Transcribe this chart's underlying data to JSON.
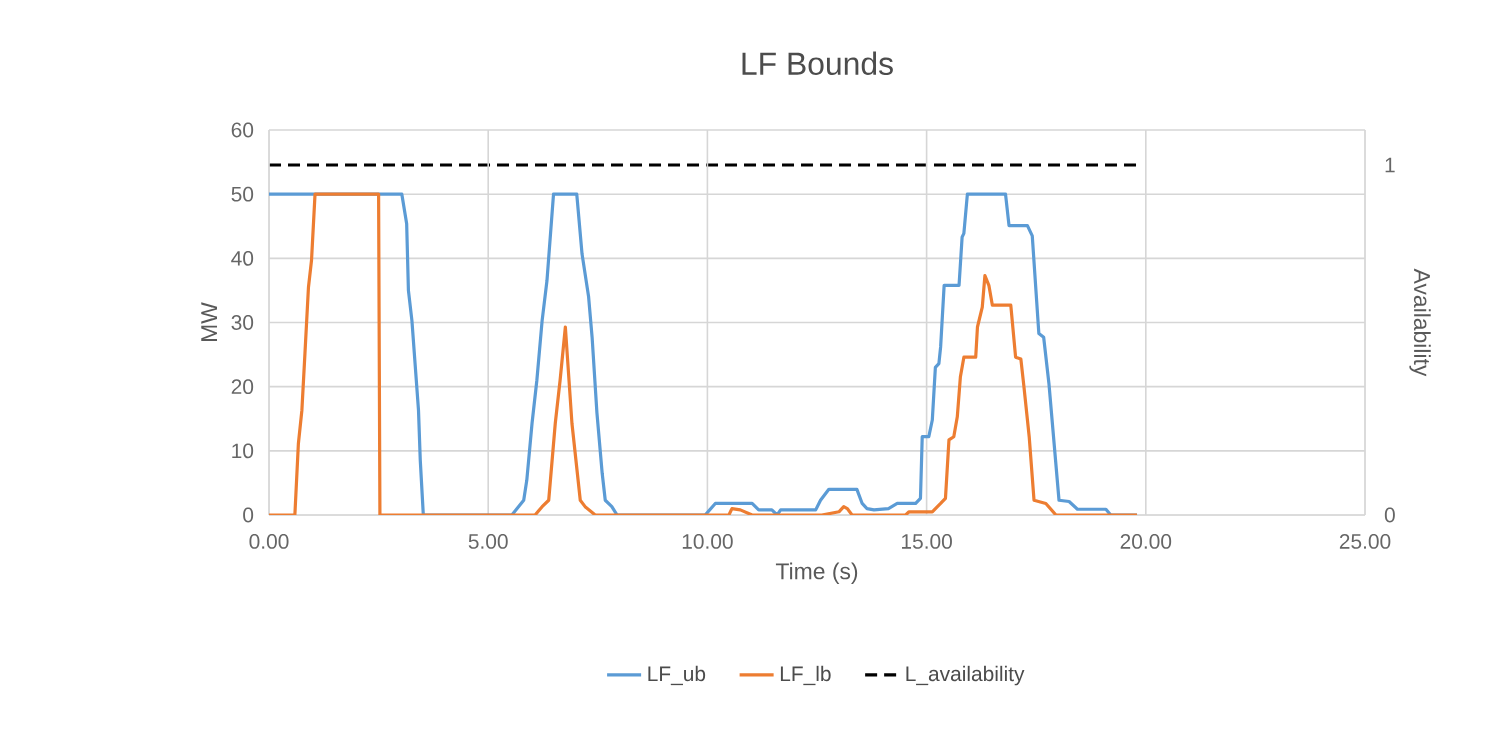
{
  "chart_data": {
    "type": "line",
    "title": "LF Bounds",
    "xlabel": "Time (s)",
    "ylabel": "MW",
    "y2label": "Availability",
    "xlim": [
      0,
      25
    ],
    "xticks": [
      {
        "value": 0,
        "label": "0.00"
      },
      {
        "value": 5,
        "label": "5.00"
      },
      {
        "value": 10,
        "label": "10.00"
      },
      {
        "value": 15,
        "label": "15.00"
      },
      {
        "value": 20,
        "label": "20.00"
      },
      {
        "value": 25,
        "label": "25.00"
      }
    ],
    "ylim": [
      0,
      60
    ],
    "yticks": [
      0,
      10,
      20,
      30,
      40,
      50,
      60
    ],
    "y2lim": [
      0,
      1.1
    ],
    "y2ticks": [
      0,
      1
    ],
    "grid": true,
    "legend": "bottom",
    "marker": "none",
    "series": [
      {
        "name": "LF_ub",
        "color": "#5b9bd5",
        "line_style": "solid",
        "x": [
          0,
          3.03,
          3.14,
          3.18,
          3.26,
          3.41,
          3.45,
          3.52,
          5.54,
          5.81,
          5.88,
          6.0,
          6.11,
          6.23,
          6.34,
          6.49,
          7.02,
          7.14,
          7.29,
          7.37,
          7.48,
          7.6,
          7.67,
          7.82,
          7.94,
          9.95,
          10.18,
          11.02,
          11.17,
          11.47,
          11.59,
          11.67,
          12.47,
          12.58,
          12.77,
          13.41,
          13.53,
          13.64,
          13.8,
          14.13,
          14.33,
          14.75,
          14.86,
          14.9,
          15.05,
          15.13,
          15.2,
          15.28,
          15.32,
          15.4,
          15.74,
          15.81,
          15.85,
          15.93,
          16.8,
          16.88,
          17.3,
          17.41,
          17.56,
          17.67,
          17.79,
          18.02,
          18.25,
          18.44,
          19.09,
          19.2,
          19.8
        ],
        "values": [
          50,
          50,
          45.4,
          35,
          30.3,
          16.3,
          8.6,
          0,
          0,
          2.3,
          5.4,
          14.3,
          21,
          30.3,
          36.5,
          50,
          50,
          40.7,
          34,
          27.7,
          15.9,
          6.5,
          2.3,
          1.3,
          0,
          0,
          1.8,
          1.8,
          0.8,
          0.8,
          0,
          0.8,
          0.8,
          2.3,
          4,
          4,
          1.8,
          1,
          0.8,
          1,
          1.8,
          1.8,
          2.6,
          12.2,
          12.2,
          14.8,
          23,
          23.6,
          26.2,
          35.8,
          35.8,
          43.3,
          43.9,
          50,
          50,
          45.1,
          45.1,
          43.5,
          28.3,
          27.7,
          20.5,
          2.3,
          2.1,
          0.9,
          0.9,
          0,
          0
        ]
      },
      {
        "name": "LF_lb",
        "color": "#ed7d31",
        "line_style": "solid",
        "x": [
          0,
          0.59,
          0.67,
          0.75,
          0.82,
          0.9,
          0.97,
          1.05,
          2.5,
          2.53,
          6.07,
          6.23,
          6.38,
          6.53,
          6.64,
          6.76,
          6.91,
          7.1,
          7.21,
          7.44,
          10.49,
          10.56,
          10.75,
          11.02,
          12.61,
          13.0,
          13.11,
          13.19,
          13.3,
          14.52,
          14.6,
          15.13,
          15.32,
          15.43,
          15.51,
          15.62,
          15.7,
          15.77,
          15.85,
          16.12,
          16.16,
          16.27,
          16.33,
          16.42,
          16.5,
          16.92,
          17.03,
          17.15,
          17.22,
          17.34,
          17.45,
          17.72,
          17.95,
          19.8
        ],
        "values": [
          0,
          0,
          11.1,
          16.3,
          25.2,
          35.5,
          39.7,
          50,
          50,
          0,
          0,
          1.3,
          2.3,
          14.3,
          21,
          29.3,
          14.3,
          2.3,
          1.3,
          0,
          0,
          1,
          0.8,
          0,
          0,
          0.5,
          1.3,
          1,
          0,
          0,
          0.5,
          0.5,
          1.8,
          2.6,
          11.7,
          12.2,
          15.3,
          21.5,
          24.6,
          24.6,
          29.3,
          32.4,
          37.3,
          35.8,
          32.7,
          32.7,
          24.6,
          24.3,
          20,
          12.2,
          2.3,
          1.8,
          0,
          0
        ]
      },
      {
        "name": "L_availability",
        "color": "#000000",
        "line_style": "dashed",
        "axis": "y2",
        "x": [
          0,
          19.8
        ],
        "values": [
          1,
          1
        ]
      }
    ]
  }
}
